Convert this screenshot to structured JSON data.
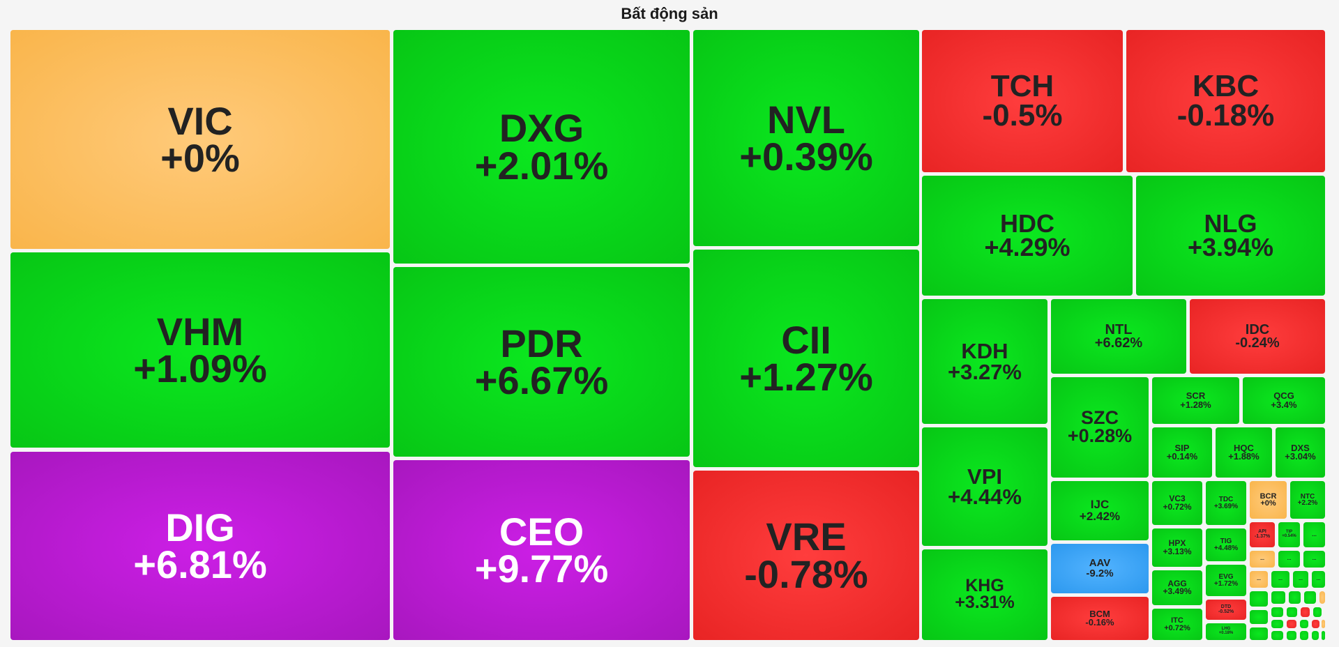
{
  "title": "Bất động sản",
  "colors": {
    "up": "#07d61a",
    "down": "#f02b2b",
    "reference": "#fbbd5e",
    "ceiling": "#bd1bd6",
    "floor": "#3ba6f5"
  },
  "chart_data": {
    "type": "treemap",
    "title": "Bất động sản",
    "tiles": [
      {
        "symbol": "VIC",
        "change": "+0%",
        "status": "reference"
      },
      {
        "symbol": "VHM",
        "change": "+1.09%",
        "status": "up"
      },
      {
        "symbol": "DIG",
        "change": "+6.81%",
        "status": "ceiling"
      },
      {
        "symbol": "DXG",
        "change": "+2.01%",
        "status": "up"
      },
      {
        "symbol": "PDR",
        "change": "+6.67%",
        "status": "up"
      },
      {
        "symbol": "CEO",
        "change": "+9.77%",
        "status": "ceiling"
      },
      {
        "symbol": "NVL",
        "change": "+0.39%",
        "status": "up"
      },
      {
        "symbol": "CII",
        "change": "+1.27%",
        "status": "up"
      },
      {
        "symbol": "VRE",
        "change": "-0.78%",
        "status": "down"
      },
      {
        "symbol": "TCH",
        "change": "-0.5%",
        "status": "down"
      },
      {
        "symbol": "KBC",
        "change": "-0.18%",
        "status": "down"
      },
      {
        "symbol": "HDC",
        "change": "+4.29%",
        "status": "up"
      },
      {
        "symbol": "NLG",
        "change": "+3.94%",
        "status": "up"
      },
      {
        "symbol": "KDH",
        "change": "+3.27%",
        "status": "up"
      },
      {
        "symbol": "NTL",
        "change": "+6.62%",
        "status": "up"
      },
      {
        "symbol": "IDC",
        "change": "-0.24%",
        "status": "down"
      },
      {
        "symbol": "VPI",
        "change": "+4.44%",
        "status": "up"
      },
      {
        "symbol": "SZC",
        "change": "+0.28%",
        "status": "up"
      },
      {
        "symbol": "SCR",
        "change": "+1.28%",
        "status": "up"
      },
      {
        "symbol": "QCG",
        "change": "+3.4%",
        "status": "up"
      },
      {
        "symbol": "SIP",
        "change": "+0.14%",
        "status": "up"
      },
      {
        "symbol": "HQC",
        "change": "+1.88%",
        "status": "up"
      },
      {
        "symbol": "DXS",
        "change": "+3.04%",
        "status": "up"
      },
      {
        "symbol": "KHG",
        "change": "+3.31%",
        "status": "up"
      },
      {
        "symbol": "IJC",
        "change": "+2.42%",
        "status": "up"
      },
      {
        "symbol": "AAV",
        "change": "-9.2%",
        "status": "floor"
      },
      {
        "symbol": "BCM",
        "change": "-0.16%",
        "status": "down"
      },
      {
        "symbol": "VC3",
        "change": "+0.72%",
        "status": "up"
      },
      {
        "symbol": "TDC",
        "change": "+3.69%",
        "status": "up"
      },
      {
        "symbol": "BCR",
        "change": "+0%",
        "status": "reference"
      },
      {
        "symbol": "NTC",
        "change": "+2.2%",
        "status": "up"
      },
      {
        "symbol": "HPX",
        "change": "+3.13%",
        "status": "up"
      },
      {
        "symbol": "TIG",
        "change": "+4.48%",
        "status": "up"
      },
      {
        "symbol": "API",
        "change": "-1.37%",
        "status": "down"
      },
      {
        "symbol": "TIP",
        "change": "+0.54%",
        "status": "up"
      },
      {
        "symbol": "AGG",
        "change": "+3.49%",
        "status": "up"
      },
      {
        "symbol": "EVG",
        "change": "+1.72%",
        "status": "up"
      },
      {
        "symbol": "DTD",
        "change": "-0.52%",
        "status": "down"
      },
      {
        "symbol": "ITC",
        "change": "+0.72%",
        "status": "up"
      },
      {
        "symbol": "LHG",
        "change": "+0.18%",
        "status": "up"
      },
      {
        "symbol": "...",
        "change": "",
        "status": "up"
      },
      {
        "symbol": "...",
        "change": "",
        "status": "reference"
      },
      {
        "symbol": "...",
        "change": "",
        "status": "up"
      },
      {
        "symbol": "...",
        "change": "",
        "status": "up"
      },
      {
        "symbol": "...",
        "change": "",
        "status": "reference"
      },
      {
        "symbol": "...",
        "change": "",
        "status": "up"
      },
      {
        "symbol": "...",
        "change": "",
        "status": "up"
      },
      {
        "symbol": "...",
        "change": "",
        "status": "up"
      },
      {
        "symbol": "",
        "change": "",
        "status": "up"
      },
      {
        "symbol": "",
        "change": "",
        "status": "up"
      },
      {
        "symbol": "",
        "change": "",
        "status": "up"
      },
      {
        "symbol": "",
        "change": "",
        "status": "up"
      },
      {
        "symbol": "",
        "change": "",
        "status": "reference"
      },
      {
        "symbol": "",
        "change": "",
        "status": "up"
      },
      {
        "symbol": "",
        "change": "",
        "status": "up"
      },
      {
        "symbol": "",
        "change": "",
        "status": "up"
      },
      {
        "symbol": "",
        "change": "",
        "status": "down"
      },
      {
        "symbol": "",
        "change": "",
        "status": "up"
      },
      {
        "symbol": "",
        "change": "",
        "status": "up"
      },
      {
        "symbol": "",
        "change": "",
        "status": "down"
      },
      {
        "symbol": "",
        "change": "",
        "status": "up"
      },
      {
        "symbol": "",
        "change": "",
        "status": "down"
      },
      {
        "symbol": "",
        "change": "",
        "status": "up"
      },
      {
        "symbol": "",
        "change": "",
        "status": "up"
      },
      {
        "symbol": "",
        "change": "",
        "status": "up"
      },
      {
        "symbol": "",
        "change": "",
        "status": "up"
      },
      {
        "symbol": "",
        "change": "",
        "status": "up"
      },
      {
        "symbol": "",
        "change": "",
        "status": "reference"
      },
      {
        "symbol": "",
        "change": "",
        "status": "up"
      },
      {
        "symbol": "",
        "change": "",
        "status": "up"
      }
    ]
  }
}
